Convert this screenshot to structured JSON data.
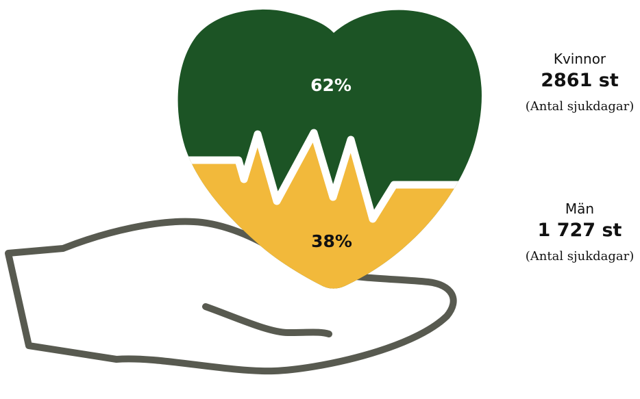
{
  "colors": {
    "women": "#1c5425",
    "men": "#f2b93b",
    "hand": "#585a50",
    "pulse": "#ffffff"
  },
  "icons": [
    "heart-icon",
    "hand-icon",
    "heartbeat-icon"
  ],
  "heart": {
    "women_share": 0.62,
    "men_share": 0.38,
    "women_label": "62%",
    "men_label": "38%"
  },
  "stats": {
    "women": {
      "group": "Kvinnor",
      "count": "2861 st",
      "note": "(Antal sjukdagar)"
    },
    "men": {
      "group": "Män",
      "count": "1 727 st",
      "note": "(Antal sjukdagar)"
    }
  }
}
